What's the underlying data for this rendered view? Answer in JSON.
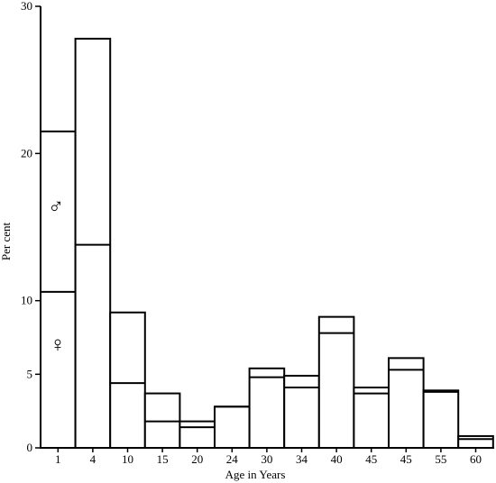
{
  "chart_data": {
    "type": "bar",
    "subtype": "stacked-histogram",
    "title": "",
    "xlabel": "Age in Years",
    "ylabel": "Per cent",
    "ylim": [
      0,
      30
    ],
    "y_ticks": [
      "0",
      "5",
      "10",
      "20",
      "30"
    ],
    "y_tick_values": [
      0,
      5,
      10,
      20,
      30
    ],
    "categories": [
      "1",
      "4",
      "10",
      "15",
      "20",
      "24",
      "30",
      "34",
      "40",
      "45",
      "45",
      "55",
      "60"
    ],
    "series": [
      {
        "name": "♀",
        "values": [
          10.6,
          13.8,
          4.4,
          1.8,
          1.4,
          2.8,
          4.8,
          4.1,
          7.8,
          3.7,
          5.3,
          3.8,
          0.6
        ]
      },
      {
        "name": "♂",
        "values": [
          10.9,
          14.0,
          4.8,
          1.9,
          0.4,
          0.0,
          0.6,
          0.8,
          1.1,
          0.4,
          0.8,
          0.1,
          0.2
        ]
      }
    ],
    "grid": false,
    "legend": "inside-first-bar"
  }
}
